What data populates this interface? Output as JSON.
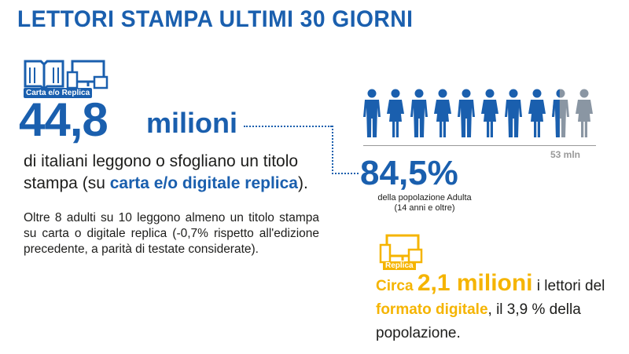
{
  "title": "LETTORI  STAMPA ULTIMI 30 GIORNI",
  "print": {
    "icon_label": "Carta e/o Replica",
    "value": "44,8",
    "unit": "milioni",
    "desc_pre": "di italiani leggono o sfogliano un titolo stampa (su ",
    "desc_bold": "carta e/o digitale replica",
    "desc_post": ").",
    "paragraph": "Oltre 8 adulti su 10 leggono almeno un titolo stampa su carta o digitale replica (-0,7% rispetto all'edizione precedente, a parità di testate considerate)."
  },
  "population": {
    "total_label": "53 mln",
    "percent": "84,5%",
    "sub_line1": "della popolazione Adulta",
    "sub_line2": "(14 anni e oltre)",
    "figures_total": 10,
    "figures_filled": 8.45,
    "fill_color": "#1a5fae",
    "empty_color": "#8a96a3"
  },
  "replica": {
    "icon_label": "Replica",
    "pre": "Circa ",
    "value": "2,1 milioni",
    "mid": " i lettori del ",
    "bold": "formato digitale",
    "post": ", il 3,9 % della popolazione."
  },
  "colors": {
    "accent": "#1a5fae",
    "highlight": "#f5b400"
  }
}
